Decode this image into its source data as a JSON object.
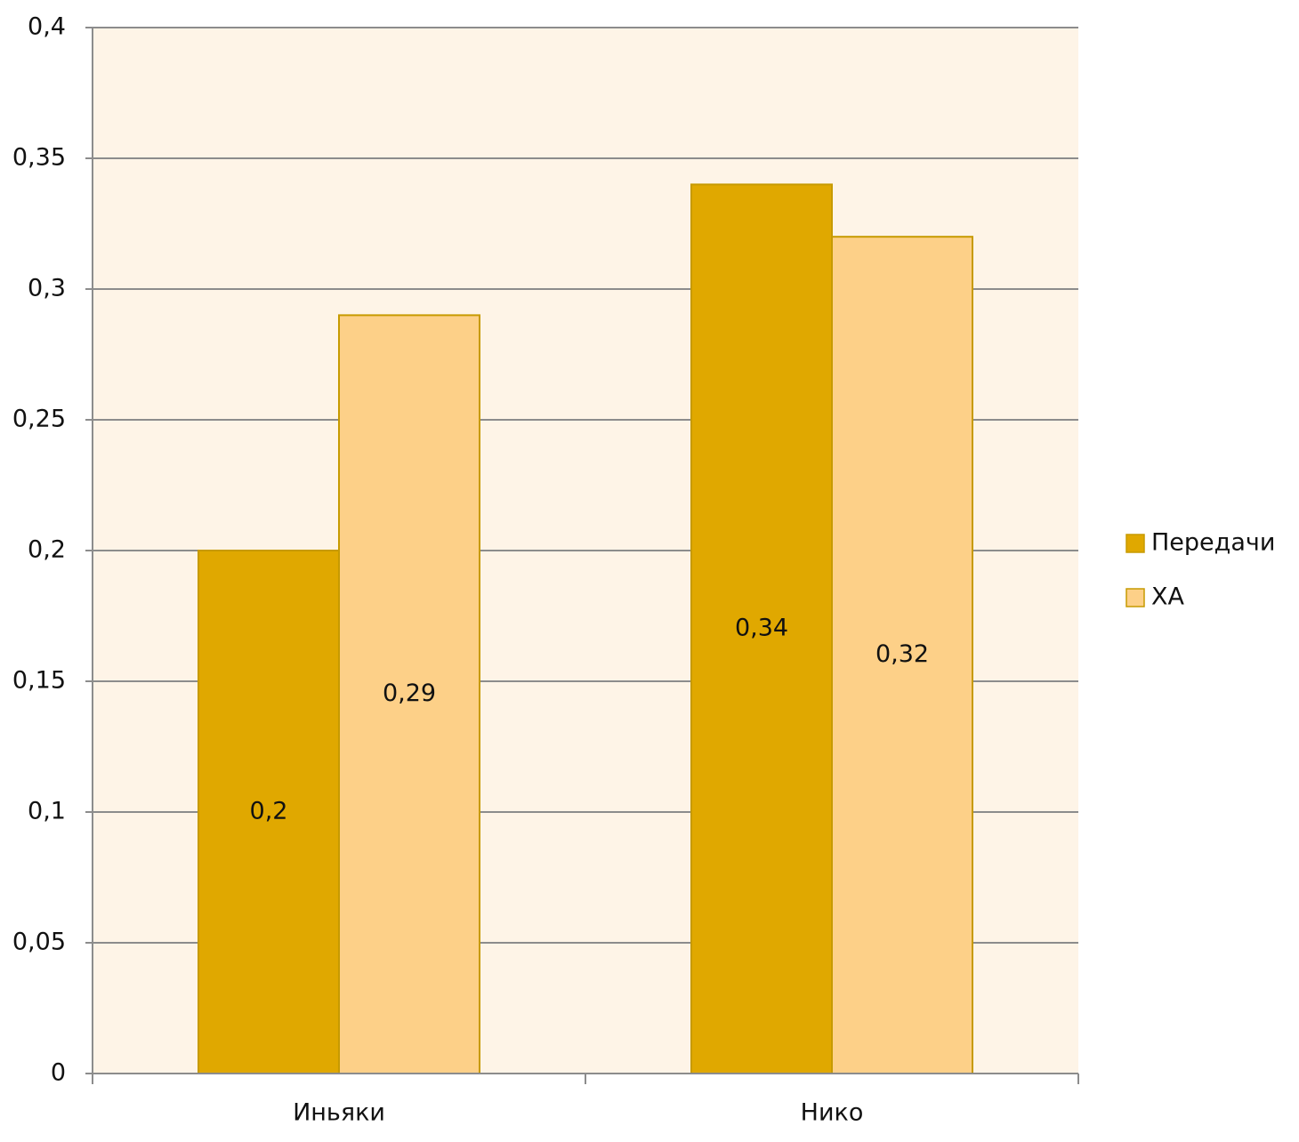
{
  "chart_data": {
    "type": "bar",
    "categories": [
      "Иньяки",
      "Нико"
    ],
    "series": [
      {
        "name": "Передачи",
        "color": "#e0a800",
        "values": [
          0.2,
          0.34
        ],
        "value_labels": [
          "0,2",
          "0,34"
        ]
      },
      {
        "name": "ХА",
        "color": "#fdd088",
        "values": [
          0.29,
          0.32
        ],
        "value_labels": [
          "0,29",
          "0,32"
        ]
      }
    ],
    "ylim": [
      0,
      0.4
    ],
    "yticks": [
      0,
      {
        "value": 0.05,
        "label": "0,05"
      },
      {
        "value": 0.1,
        "label": "0,1"
      },
      {
        "value": 0.15,
        "label": "0,15"
      },
      {
        "value": 0.2,
        "label": "0,2"
      },
      {
        "value": 0.25,
        "label": "0,25"
      },
      {
        "value": 0.3,
        "label": "0,3"
      },
      {
        "value": 0.35,
        "label": "0,35"
      },
      {
        "value": 0.4,
        "label": "0,4"
      }
    ],
    "grid": true,
    "legend": "right"
  }
}
